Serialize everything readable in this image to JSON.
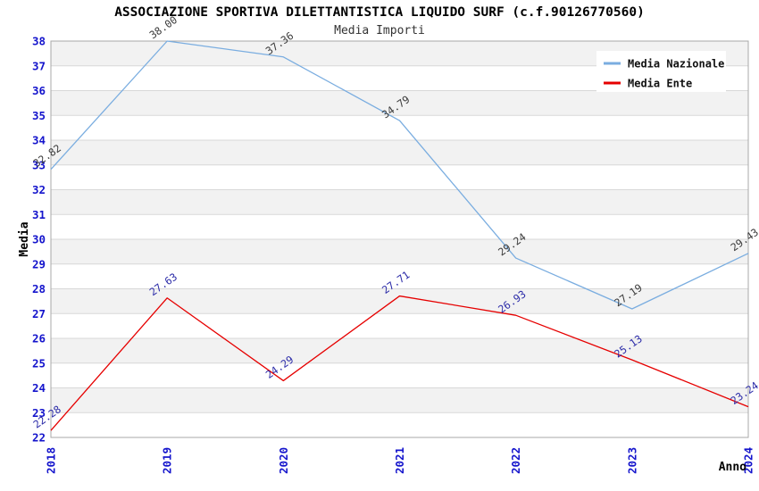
{
  "title": "ASSOCIAZIONE SPORTIVA DILETTANTISTICA LIQUIDO SURF (c.f.90126770560)",
  "subtitle": "Media Importi",
  "chart_data": {
    "type": "line",
    "title": "ASSOCIAZIONE SPORTIVA DILETTANTISTICA LIQUIDO SURF (c.f.90126770560)",
    "subtitle": "Media Importi",
    "categories": [
      "2018",
      "2019",
      "2020",
      "2021",
      "2022",
      "2023",
      "2024"
    ],
    "series": [
      {
        "name": "Media Nazionale",
        "color": "#7aade0",
        "label_color": "#3a3a3a",
        "values": [
          32.82,
          38.0,
          37.36,
          34.79,
          29.24,
          27.19,
          29.43
        ]
      },
      {
        "name": "Media Ente",
        "color": "#e60000",
        "label_color": "#2b2ba8",
        "values": [
          22.28,
          27.63,
          24.29,
          27.71,
          26.93,
          25.13,
          23.24
        ]
      }
    ],
    "xlabel": "Anno",
    "ylabel": "Media",
    "ylim": [
      22,
      38
    ],
    "ytick_step": 1,
    "yticks": [
      22,
      23,
      24,
      25,
      26,
      27,
      28,
      29,
      30,
      31,
      32,
      33,
      34,
      35,
      36,
      37,
      38
    ],
    "grid": "horizontal",
    "legend_position": "top-right",
    "colors": {
      "tick_label": "#1414cc",
      "axis_title": "#000000",
      "band_gray": "#f2f2f2",
      "band_white": "#ffffff",
      "gridline": "#d8d8d8",
      "plot_border": "#a8a8a8",
      "legend_bg": "#ffffff",
      "legend_text": "#111111"
    }
  }
}
